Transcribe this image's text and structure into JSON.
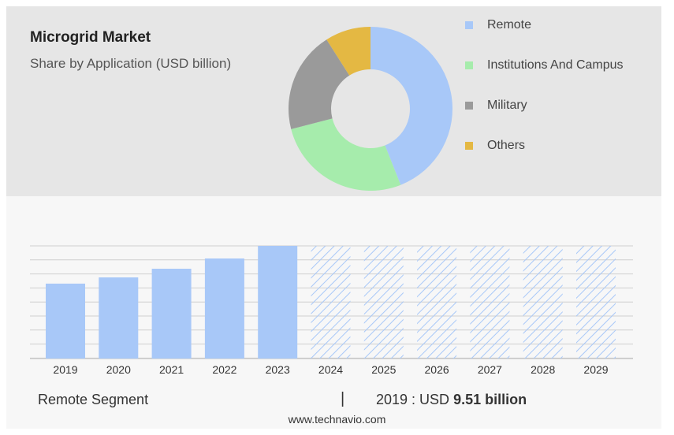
{
  "colors": {
    "remote": "#a8c8f8",
    "institutions": "#a6ecac",
    "military": "#9a9a9a",
    "others": "#e4b843",
    "forecast_hatch": "#a8c8f8"
  },
  "chart_data": [
    {
      "type": "pie",
      "title": "Microgrid Market",
      "subtitle": "Share by Application (USD billion)",
      "donut": true,
      "legend_position": "right",
      "series": [
        {
          "name": "Remote",
          "value": 44
        },
        {
          "name": "Institutions And Campus",
          "value": 27
        },
        {
          "name": "Military",
          "value": 20
        },
        {
          "name": "Others",
          "value": 9
        }
      ]
    },
    {
      "type": "bar",
      "categories": [
        "2019",
        "2020",
        "2021",
        "2022",
        "2023",
        "2024",
        "2025",
        "2026",
        "2027",
        "2028",
        "2029"
      ],
      "values": [
        9.51,
        10.3,
        11.4,
        12.7,
        14.3,
        14.3,
        14.3,
        14.3,
        14.3,
        14.3,
        14.3
      ],
      "forecast_from": "2024",
      "ylim": [
        0,
        15.8
      ],
      "grid": true
    }
  ],
  "footer": {
    "segment_label": "Remote Segment",
    "divider": "|",
    "value_prefix": "2019 : USD",
    "value_bold": "9.51 billion"
  },
  "watermark": "www.technavio.com"
}
